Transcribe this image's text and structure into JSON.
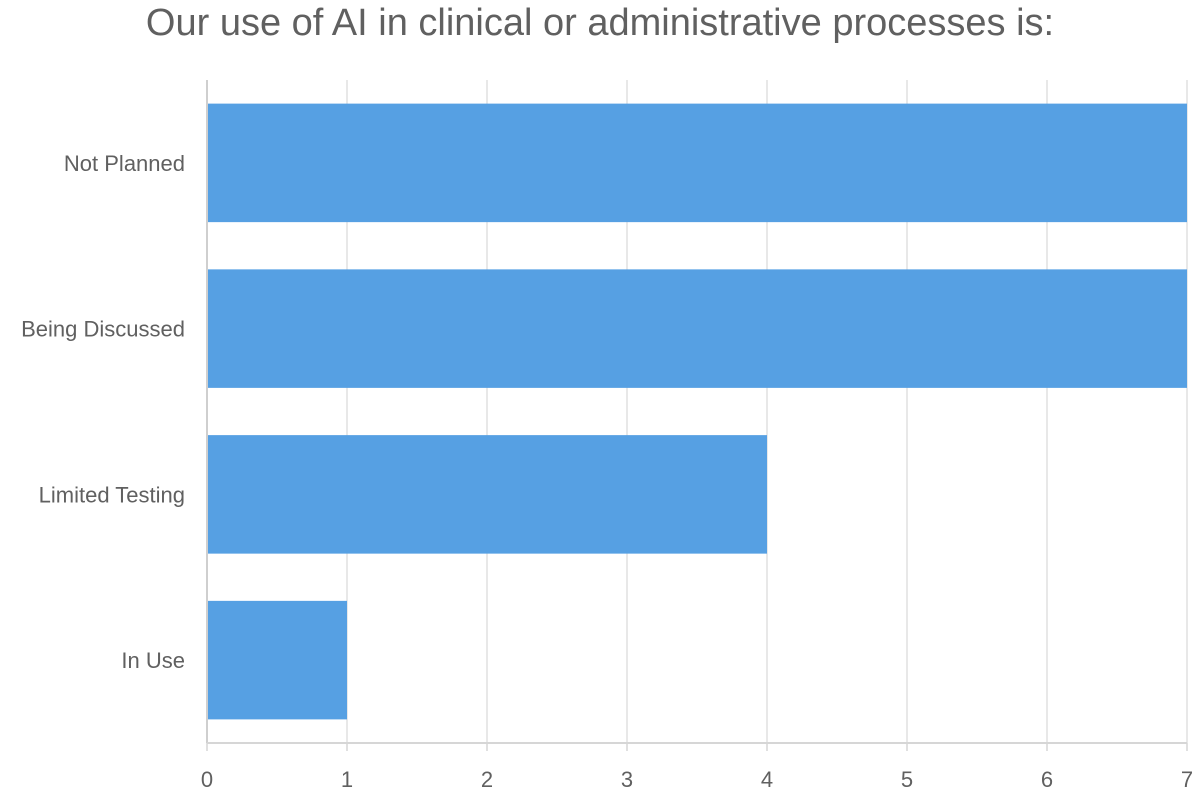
{
  "chart_data": {
    "type": "bar",
    "orientation": "horizontal",
    "title": "Our use of AI in clinical or administrative processes is:",
    "categories": [
      "Not Planned",
      "Being Discussed",
      "Limited Testing",
      "In Use"
    ],
    "values": [
      7,
      7,
      4,
      1
    ],
    "xlim": [
      0,
      7
    ],
    "xticks": [
      "0",
      "1",
      "2",
      "3",
      "4",
      "5",
      "6",
      "7"
    ],
    "xlabel": "",
    "ylabel": "",
    "grid": "vertical",
    "legend": "none",
    "bar_color": "#56a0e3"
  }
}
